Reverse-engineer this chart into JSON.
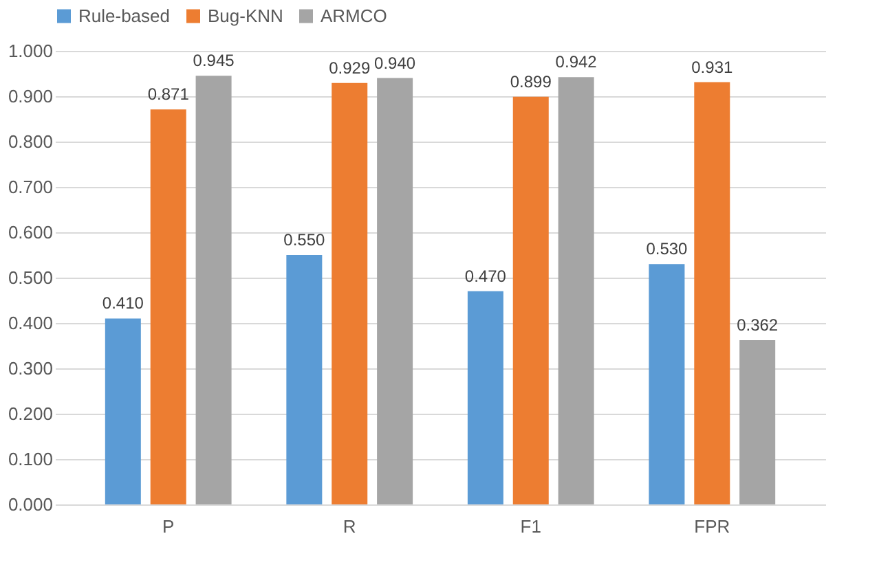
{
  "chart_data": {
    "type": "bar",
    "categories": [
      "P",
      "R",
      "F1",
      "FPR"
    ],
    "series": [
      {
        "name": "Rule-based",
        "color": "#5b9bd5",
        "values": [
          0.41,
          0.55,
          0.47,
          0.53
        ],
        "value_labels": [
          "0.410",
          "0.550",
          "0.470",
          "0.530"
        ]
      },
      {
        "name": "Bug-KNN",
        "color": "#ed7d31",
        "values": [
          0.871,
          0.929,
          0.899,
          0.931
        ],
        "value_labels": [
          "0.871",
          "0.929",
          "0.899",
          "0.931"
        ]
      },
      {
        "name": "ARMCO",
        "color": "#a5a5a5",
        "values": [
          0.945,
          0.94,
          0.942,
          0.362
        ],
        "value_labels": [
          "0.945",
          "0.940",
          "0.942",
          "0.362"
        ]
      }
    ],
    "ylim": [
      0,
      1
    ],
    "yticks": [
      {
        "value": 0,
        "label": "0.000"
      },
      {
        "value": 0.1,
        "label": "0.100"
      },
      {
        "value": 0.2,
        "label": "0.200"
      },
      {
        "value": 0.3,
        "label": "0.300"
      },
      {
        "value": 0.4,
        "label": "0.400"
      },
      {
        "value": 0.5,
        "label": "0.500"
      },
      {
        "value": 0.6,
        "label": "0.600"
      },
      {
        "value": 0.7,
        "label": "0.700"
      },
      {
        "value": 0.8,
        "label": "0.800"
      },
      {
        "value": 0.9,
        "label": "0.900"
      },
      {
        "value": 1,
        "label": "1.000"
      }
    ],
    "grid": "y",
    "legend": "top"
  }
}
